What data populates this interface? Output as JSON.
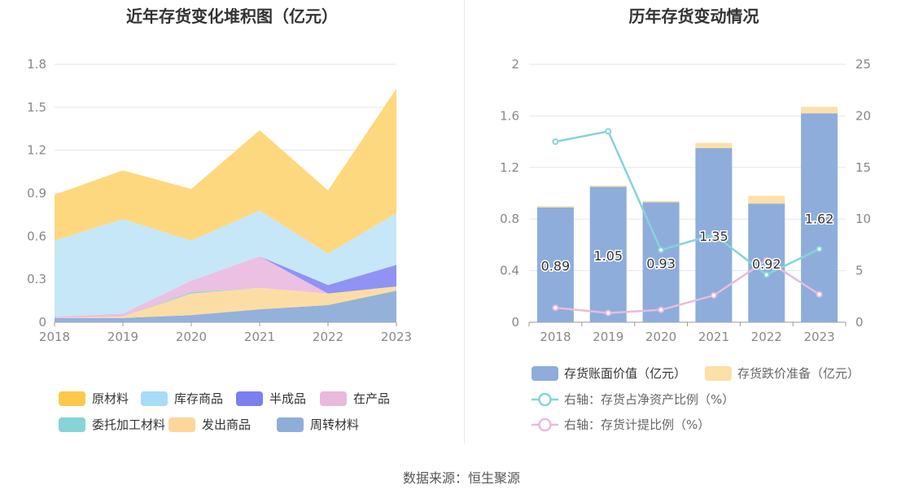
{
  "source_text": "数据来源：恒生聚源",
  "chart_data": [
    {
      "type": "area",
      "stacked": true,
      "title": "近年存货变化堆积图（亿元）",
      "categories": [
        "2018",
        "2019",
        "2020",
        "2021",
        "2022",
        "2023"
      ],
      "y_ticks": [
        "0",
        "0.3",
        "0.6",
        "0.9",
        "1.2",
        "1.5",
        "1.8"
      ],
      "ylim": [
        0,
        1.8
      ],
      "grid": true,
      "legend_position": "bottom",
      "series": [
        {
          "name": "周转材料",
          "color": "#8eadd8",
          "values": [
            0.03,
            0.03,
            0.05,
            0.09,
            0.12,
            0.22
          ]
        },
        {
          "name": "发出商品",
          "color": "#fddba1",
          "values": [
            0.0,
            0.01,
            0.15,
            0.15,
            0.08,
            0.03
          ]
        },
        {
          "name": "委托加工材料",
          "color": "#8ad4d6",
          "values": [
            0.0,
            0.0,
            0.01,
            0.0,
            0.0,
            0.0
          ]
        },
        {
          "name": "在产品",
          "color": "#ebbde0",
          "values": [
            0.01,
            0.02,
            0.08,
            0.22,
            0.0,
            0.0
          ]
        },
        {
          "name": "半成品",
          "color": "#8a8df2",
          "values": [
            0.0,
            0.0,
            0.0,
            0.0,
            0.06,
            0.15
          ]
        },
        {
          "name": "库存商品",
          "color": "#c3e6f8",
          "values": [
            0.53,
            0.66,
            0.28,
            0.32,
            0.22,
            0.36
          ]
        },
        {
          "name": "原材料",
          "color": "#fed677",
          "values": [
            0.32,
            0.34,
            0.36,
            0.56,
            0.44,
            0.87
          ]
        }
      ],
      "legend": [
        {
          "name": "原材料",
          "color": "#fcc94a"
        },
        {
          "name": "库存商品",
          "color": "#a7dcf7"
        },
        {
          "name": "半成品",
          "color": "#7b7ff0"
        },
        {
          "name": "在产品",
          "color": "#e8b9dc"
        },
        {
          "name": "委托加工材料",
          "color": "#86d4d6"
        },
        {
          "name": "发出商品",
          "color": "#fdd79a"
        },
        {
          "name": "周转材料",
          "color": "#8fadd9"
        }
      ]
    },
    {
      "type": "bar",
      "stacked": true,
      "title": "历年存货变动情况",
      "categories": [
        "2018",
        "2019",
        "2020",
        "2021",
        "2022",
        "2023"
      ],
      "y_left_ticks": [
        "0",
        "0.4",
        "0.8",
        "1.2",
        "1.6",
        "2"
      ],
      "y_right_ticks": [
        "0",
        "5",
        "10",
        "15",
        "20",
        "25"
      ],
      "ylim_left": [
        0,
        2
      ],
      "ylim_right": [
        0,
        25
      ],
      "grid": true,
      "legend_position": "bottom",
      "bar_series": [
        {
          "name": "存货账面价值（亿元）",
          "color": "#8eaddb",
          "values": [
            0.89,
            1.05,
            0.93,
            1.35,
            0.92,
            1.62
          ],
          "labels": [
            "0.89",
            "1.05",
            "0.93",
            "1.35",
            "0.92",
            "1.62"
          ]
        },
        {
          "name": "存货跌价准备（亿元）",
          "color": "#fde0a8",
          "values": [
            0.01,
            0.01,
            0.01,
            0.04,
            0.06,
            0.05
          ]
        }
      ],
      "line_series": [
        {
          "name": "右轴：存货占净资产比例（%）",
          "color": "#86d4d4",
          "values": [
            17.5,
            18.5,
            7.0,
            8.5,
            4.6,
            7.1
          ]
        },
        {
          "name": "右轴：存货计提比例（%）",
          "color": "#e8bcdc",
          "values": [
            1.4,
            0.9,
            1.2,
            2.6,
            6.0,
            2.7
          ]
        }
      ]
    }
  ]
}
